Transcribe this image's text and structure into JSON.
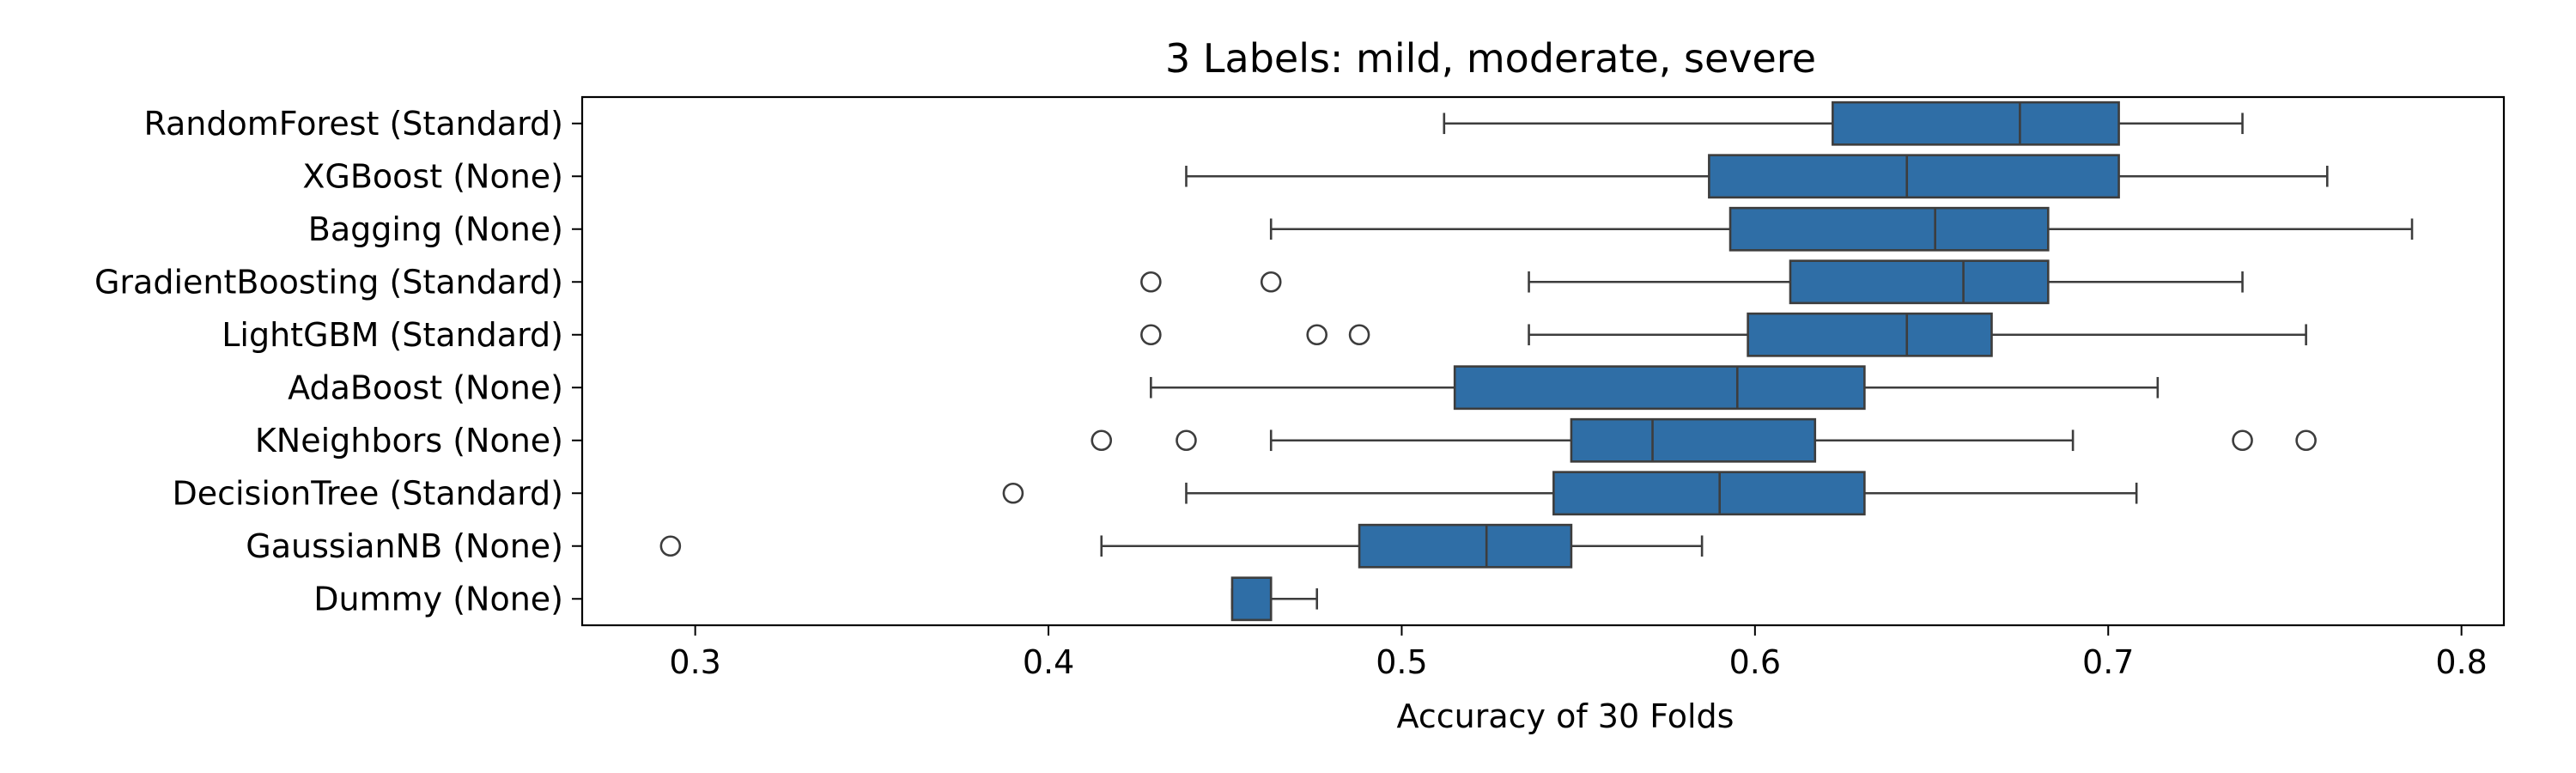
{
  "chart_data": {
    "type": "box",
    "orientation": "horizontal",
    "title": "3 Labels: mild, moderate, severe",
    "xlabel": "Accuracy of 30 Folds",
    "ylabel": "",
    "xlim": [
      0.268,
      0.812
    ],
    "xticks": [
      0.3,
      0.4,
      0.5,
      0.6,
      0.7,
      0.8
    ],
    "xtick_labels": [
      "0.3",
      "0.4",
      "0.5",
      "0.6",
      "0.7",
      "0.8"
    ],
    "grid": false,
    "legend": "none",
    "colors": {
      "box_fill": "#2f6ea6",
      "line": "#3d3d3d"
    },
    "series": [
      {
        "name": "RandomForest (Standard)",
        "whisker_low": 0.512,
        "q1": 0.622,
        "median": 0.675,
        "q3": 0.703,
        "whisker_high": 0.738,
        "outliers": []
      },
      {
        "name": "XGBoost (None)",
        "whisker_low": 0.439,
        "q1": 0.587,
        "median": 0.643,
        "q3": 0.703,
        "whisker_high": 0.762,
        "outliers": []
      },
      {
        "name": "Bagging (None)",
        "whisker_low": 0.463,
        "q1": 0.593,
        "median": 0.651,
        "q3": 0.683,
        "whisker_high": 0.786,
        "outliers": []
      },
      {
        "name": "GradientBoosting (Standard)",
        "whisker_low": 0.536,
        "q1": 0.61,
        "median": 0.659,
        "q3": 0.683,
        "whisker_high": 0.738,
        "outliers": [
          0.429,
          0.463
        ]
      },
      {
        "name": "LightGBM (Standard)",
        "whisker_low": 0.536,
        "q1": 0.598,
        "median": 0.643,
        "q3": 0.667,
        "whisker_high": 0.756,
        "outliers": [
          0.429,
          0.476,
          0.488
        ]
      },
      {
        "name": "AdaBoost (None)",
        "whisker_low": 0.429,
        "q1": 0.515,
        "median": 0.595,
        "q3": 0.631,
        "whisker_high": 0.714,
        "outliers": []
      },
      {
        "name": "KNeighbors (None)",
        "whisker_low": 0.463,
        "q1": 0.548,
        "median": 0.571,
        "q3": 0.617,
        "whisker_high": 0.69,
        "outliers": [
          0.415,
          0.439,
          0.738,
          0.756
        ]
      },
      {
        "name": "DecisionTree (Standard)",
        "whisker_low": 0.439,
        "q1": 0.543,
        "median": 0.59,
        "q3": 0.631,
        "whisker_high": 0.708,
        "outliers": [
          0.39
        ]
      },
      {
        "name": "GaussianNB (None)",
        "whisker_low": 0.415,
        "q1": 0.488,
        "median": 0.524,
        "q3": 0.548,
        "whisker_high": 0.585,
        "outliers": [
          0.293
        ]
      },
      {
        "name": "Dummy (None)",
        "whisker_low": 0.452,
        "q1": 0.452,
        "median": 0.463,
        "q3": 0.463,
        "whisker_high": 0.476,
        "outliers": []
      }
    ]
  }
}
